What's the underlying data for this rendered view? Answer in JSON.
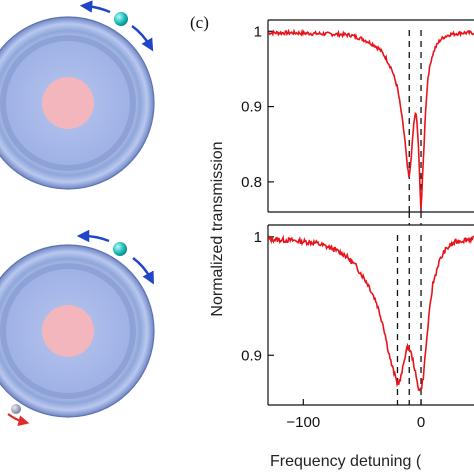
{
  "panel_label": "(c)",
  "colors": {
    "trace": "#e8141b",
    "ring_outer": "#8fa6da",
    "ring_inner": "#b3c3ee",
    "core": "#f3b6bd",
    "particle": "#21c4c0",
    "arrow_blue": "#1f45c8",
    "arrow_red": "#e12a2a",
    "scatterer_small": "#8a8fa8"
  },
  "chart_data": [
    {
      "type": "line",
      "title": "",
      "xlabel": "Frequency detuning (",
      "ylabel": "Normalized transmission",
      "xlim": [
        -130,
        45
      ],
      "ylim": [
        0.76,
        1.015
      ],
      "y_ticks": [
        "1",
        "0.9",
        "0.8"
      ],
      "y_tick_values": [
        1.0,
        0.9,
        0.8
      ],
      "x_ticks": [],
      "dashed_markers_x": [
        -10,
        0
      ],
      "series": [
        {
          "x": [
            -130,
            -110,
            -90,
            -70,
            -60,
            -50,
            -40,
            -35,
            -30,
            -25,
            -20,
            -17,
            -14,
            -12,
            -10,
            -8,
            -6,
            -5,
            -4,
            -3,
            -2,
            -1,
            0,
            2,
            4,
            6,
            9,
            12,
            16,
            20,
            25,
            30,
            35,
            40,
            45
          ],
          "y": [
            0.998,
            0.998,
            0.997,
            0.996,
            0.995,
            0.99,
            0.982,
            0.976,
            0.965,
            0.95,
            0.925,
            0.895,
            0.86,
            0.825,
            0.803,
            0.84,
            0.88,
            0.89,
            0.888,
            0.87,
            0.84,
            0.8,
            0.76,
            0.83,
            0.9,
            0.94,
            0.965,
            0.978,
            0.988,
            0.993,
            0.996,
            0.997,
            0.998,
            0.998,
            0.998
          ]
        }
      ]
    },
    {
      "type": "line",
      "title": "",
      "xlabel": "Frequency detuning (",
      "ylabel": "Normalized transmission",
      "xlim": [
        -130,
        45
      ],
      "ylim": [
        0.858,
        1.01
      ],
      "y_ticks": [
        "1",
        "0.9"
      ],
      "y_tick_values": [
        1.0,
        0.9
      ],
      "x_ticks": [
        "-100",
        "0"
      ],
      "x_tick_values": [
        -100,
        0
      ],
      "dashed_markers_x": [
        -20,
        -10,
        0
      ],
      "series": [
        {
          "x": [
            -130,
            -110,
            -90,
            -75,
            -65,
            -55,
            -45,
            -38,
            -32,
            -28,
            -25,
            -22,
            -20,
            -18,
            -16,
            -14,
            -12,
            -10,
            -8,
            -6,
            -4,
            -2,
            0,
            2,
            4,
            7,
            10,
            15,
            20,
            25,
            30,
            35,
            40,
            45
          ],
          "y": [
            0.998,
            0.997,
            0.995,
            0.99,
            0.985,
            0.975,
            0.96,
            0.945,
            0.925,
            0.905,
            0.892,
            0.882,
            0.876,
            0.878,
            0.886,
            0.898,
            0.906,
            0.906,
            0.9,
            0.892,
            0.88,
            0.872,
            0.871,
            0.882,
            0.905,
            0.935,
            0.96,
            0.978,
            0.988,
            0.993,
            0.996,
            0.997,
            0.998,
            0.998
          ]
        }
      ]
    }
  ]
}
